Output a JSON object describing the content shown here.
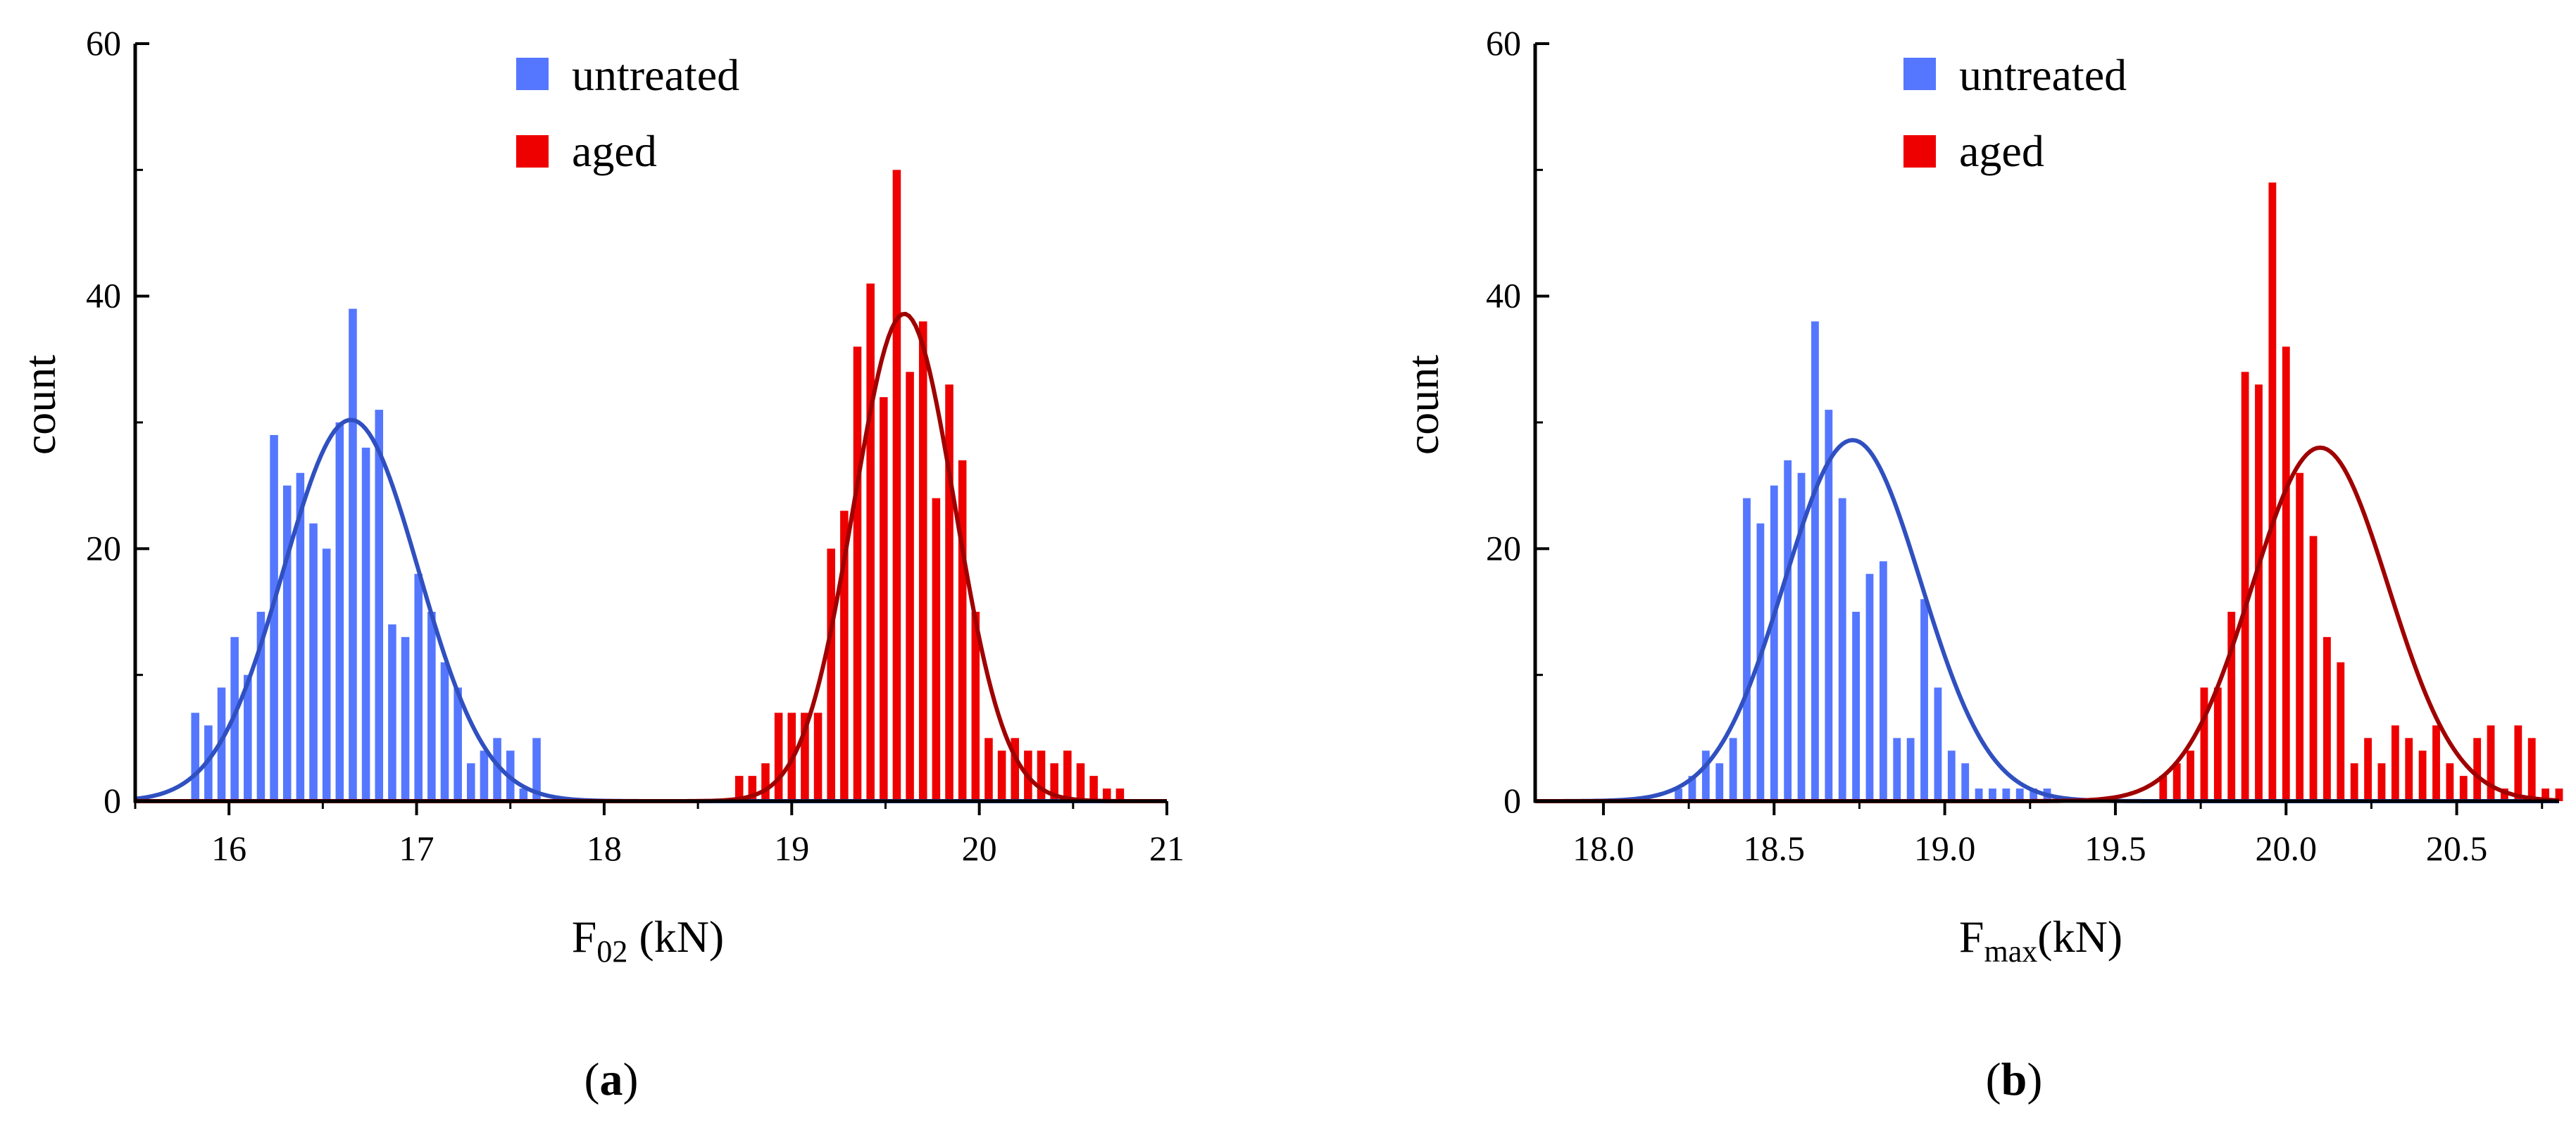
{
  "colors": {
    "untreated_bar": "#5577ff",
    "aged_bar": "#ee0000",
    "untreated_fit": "#3050c0",
    "aged_fit": "#a00000",
    "axis": "#000000"
  },
  "chart_data": [
    {
      "type": "bar",
      "panel_label": "a",
      "title": "",
      "xlabel_main": "F",
      "xlabel_sub": "02",
      "xlabel_rest": " (kN)",
      "ylabel": "count",
      "xlim": [
        15.5,
        21
      ],
      "ylim": [
        0,
        60
      ],
      "xticks": [
        16,
        17,
        18,
        19,
        20,
        21
      ],
      "xtick_labels": [
        "16",
        "17",
        "18",
        "19",
        "20",
        "21"
      ],
      "yticks": [
        0,
        20,
        40,
        60
      ],
      "ytick_labels": [
        "0",
        "20",
        "40",
        "60"
      ],
      "bin_width": 0.07,
      "legend": [
        "untreated",
        "aged"
      ],
      "legend_position": "top-center",
      "series": [
        {
          "name": "untreated",
          "x": [
            15.82,
            15.89,
            15.96,
            16.03,
            16.1,
            16.17,
            16.24,
            16.31,
            16.38,
            16.45,
            16.52,
            16.59,
            16.66,
            16.73,
            16.8,
            16.87,
            16.94,
            17.01,
            17.08,
            17.15,
            17.22,
            17.29,
            17.36,
            17.43,
            17.5,
            17.57,
            17.64
          ],
          "values": [
            7,
            6,
            9,
            13,
            10,
            15,
            29,
            25,
            26,
            22,
            20,
            30,
            39,
            28,
            31,
            14,
            13,
            18,
            15,
            11,
            9,
            3,
            4,
            5,
            4,
            1,
            5
          ],
          "fit": {
            "mean": 16.65,
            "sd": 0.36,
            "peak": 30.2
          }
        },
        {
          "name": "aged",
          "x": [
            18.72,
            18.79,
            18.86,
            18.93,
            19.0,
            19.07,
            19.14,
            19.21,
            19.28,
            19.35,
            19.42,
            19.49,
            19.56,
            19.63,
            19.7,
            19.77,
            19.84,
            19.91,
            19.98,
            20.05,
            20.12,
            20.19,
            20.26,
            20.33,
            20.4,
            20.47,
            20.54,
            20.61,
            20.68,
            20.75
          ],
          "values": [
            2,
            2,
            3,
            7,
            7,
            7,
            7,
            20,
            23,
            36,
            41,
            32,
            50,
            34,
            38,
            24,
            33,
            27,
            15,
            5,
            4,
            5,
            4,
            4,
            3,
            4,
            3,
            2,
            1,
            1
          ],
          "fit": {
            "mean": 19.6,
            "sd": 0.27,
            "peak": 38.6
          }
        }
      ]
    },
    {
      "type": "bar",
      "panel_label": "b",
      "title": "",
      "xlabel_main": "F",
      "xlabel_sub": "max",
      "xlabel_rest": "(kN)",
      "ylabel": "count",
      "xlim": [
        17.8,
        20.8
      ],
      "ylim": [
        0,
        60
      ],
      "xticks": [
        18.0,
        18.5,
        19.0,
        19.5,
        20.0,
        20.5
      ],
      "xtick_labels": [
        "18.0",
        "18.5",
        "19.0",
        "19.5",
        "20.0",
        "20.5"
      ],
      "yticks": [
        0,
        20,
        40,
        60
      ],
      "ytick_labels": [
        "0",
        "20",
        "40",
        "60"
      ],
      "bin_width": 0.036,
      "legend": [
        "untreated",
        "aged"
      ],
      "legend_position": "top-center",
      "series": [
        {
          "name": "untreated",
          "x": [
            18.22,
            18.26,
            18.3,
            18.34,
            18.38,
            18.42,
            18.46,
            18.5,
            18.54,
            18.58,
            18.62,
            18.66,
            18.7,
            18.74,
            18.78,
            18.82,
            18.86,
            18.9,
            18.94,
            18.98,
            19.02,
            19.06,
            19.1,
            19.14,
            19.18,
            19.22,
            19.26,
            19.3
          ],
          "values": [
            1,
            2,
            4,
            3,
            5,
            24,
            22,
            25,
            27,
            26,
            38,
            31,
            24,
            15,
            18,
            19,
            5,
            5,
            16,
            9,
            4,
            3,
            1,
            1,
            1,
            1,
            1,
            1
          ],
          "fit": {
            "mean": 18.73,
            "sd": 0.2,
            "peak": 28.6
          }
        },
        {
          "name": "aged",
          "x": [
            19.64,
            19.68,
            19.72,
            19.76,
            19.8,
            19.84,
            19.88,
            19.92,
            19.96,
            20.0,
            20.04,
            20.08,
            20.12,
            20.16,
            20.2,
            20.24,
            20.28,
            20.32,
            20.36,
            20.4,
            20.44,
            20.48,
            20.52,
            20.56,
            20.6,
            20.64,
            20.68,
            20.72,
            20.76,
            20.8
          ],
          "values": [
            2,
            3,
            4,
            9,
            9,
            15,
            34,
            33,
            49,
            36,
            26,
            21,
            13,
            11,
            3,
            5,
            3,
            6,
            5,
            4,
            6,
            3,
            2,
            5,
            6,
            1,
            6,
            5,
            1,
            1
          ],
          "fit": {
            "mean": 20.1,
            "sd": 0.2,
            "peak": 28
          }
        }
      ]
    }
  ]
}
